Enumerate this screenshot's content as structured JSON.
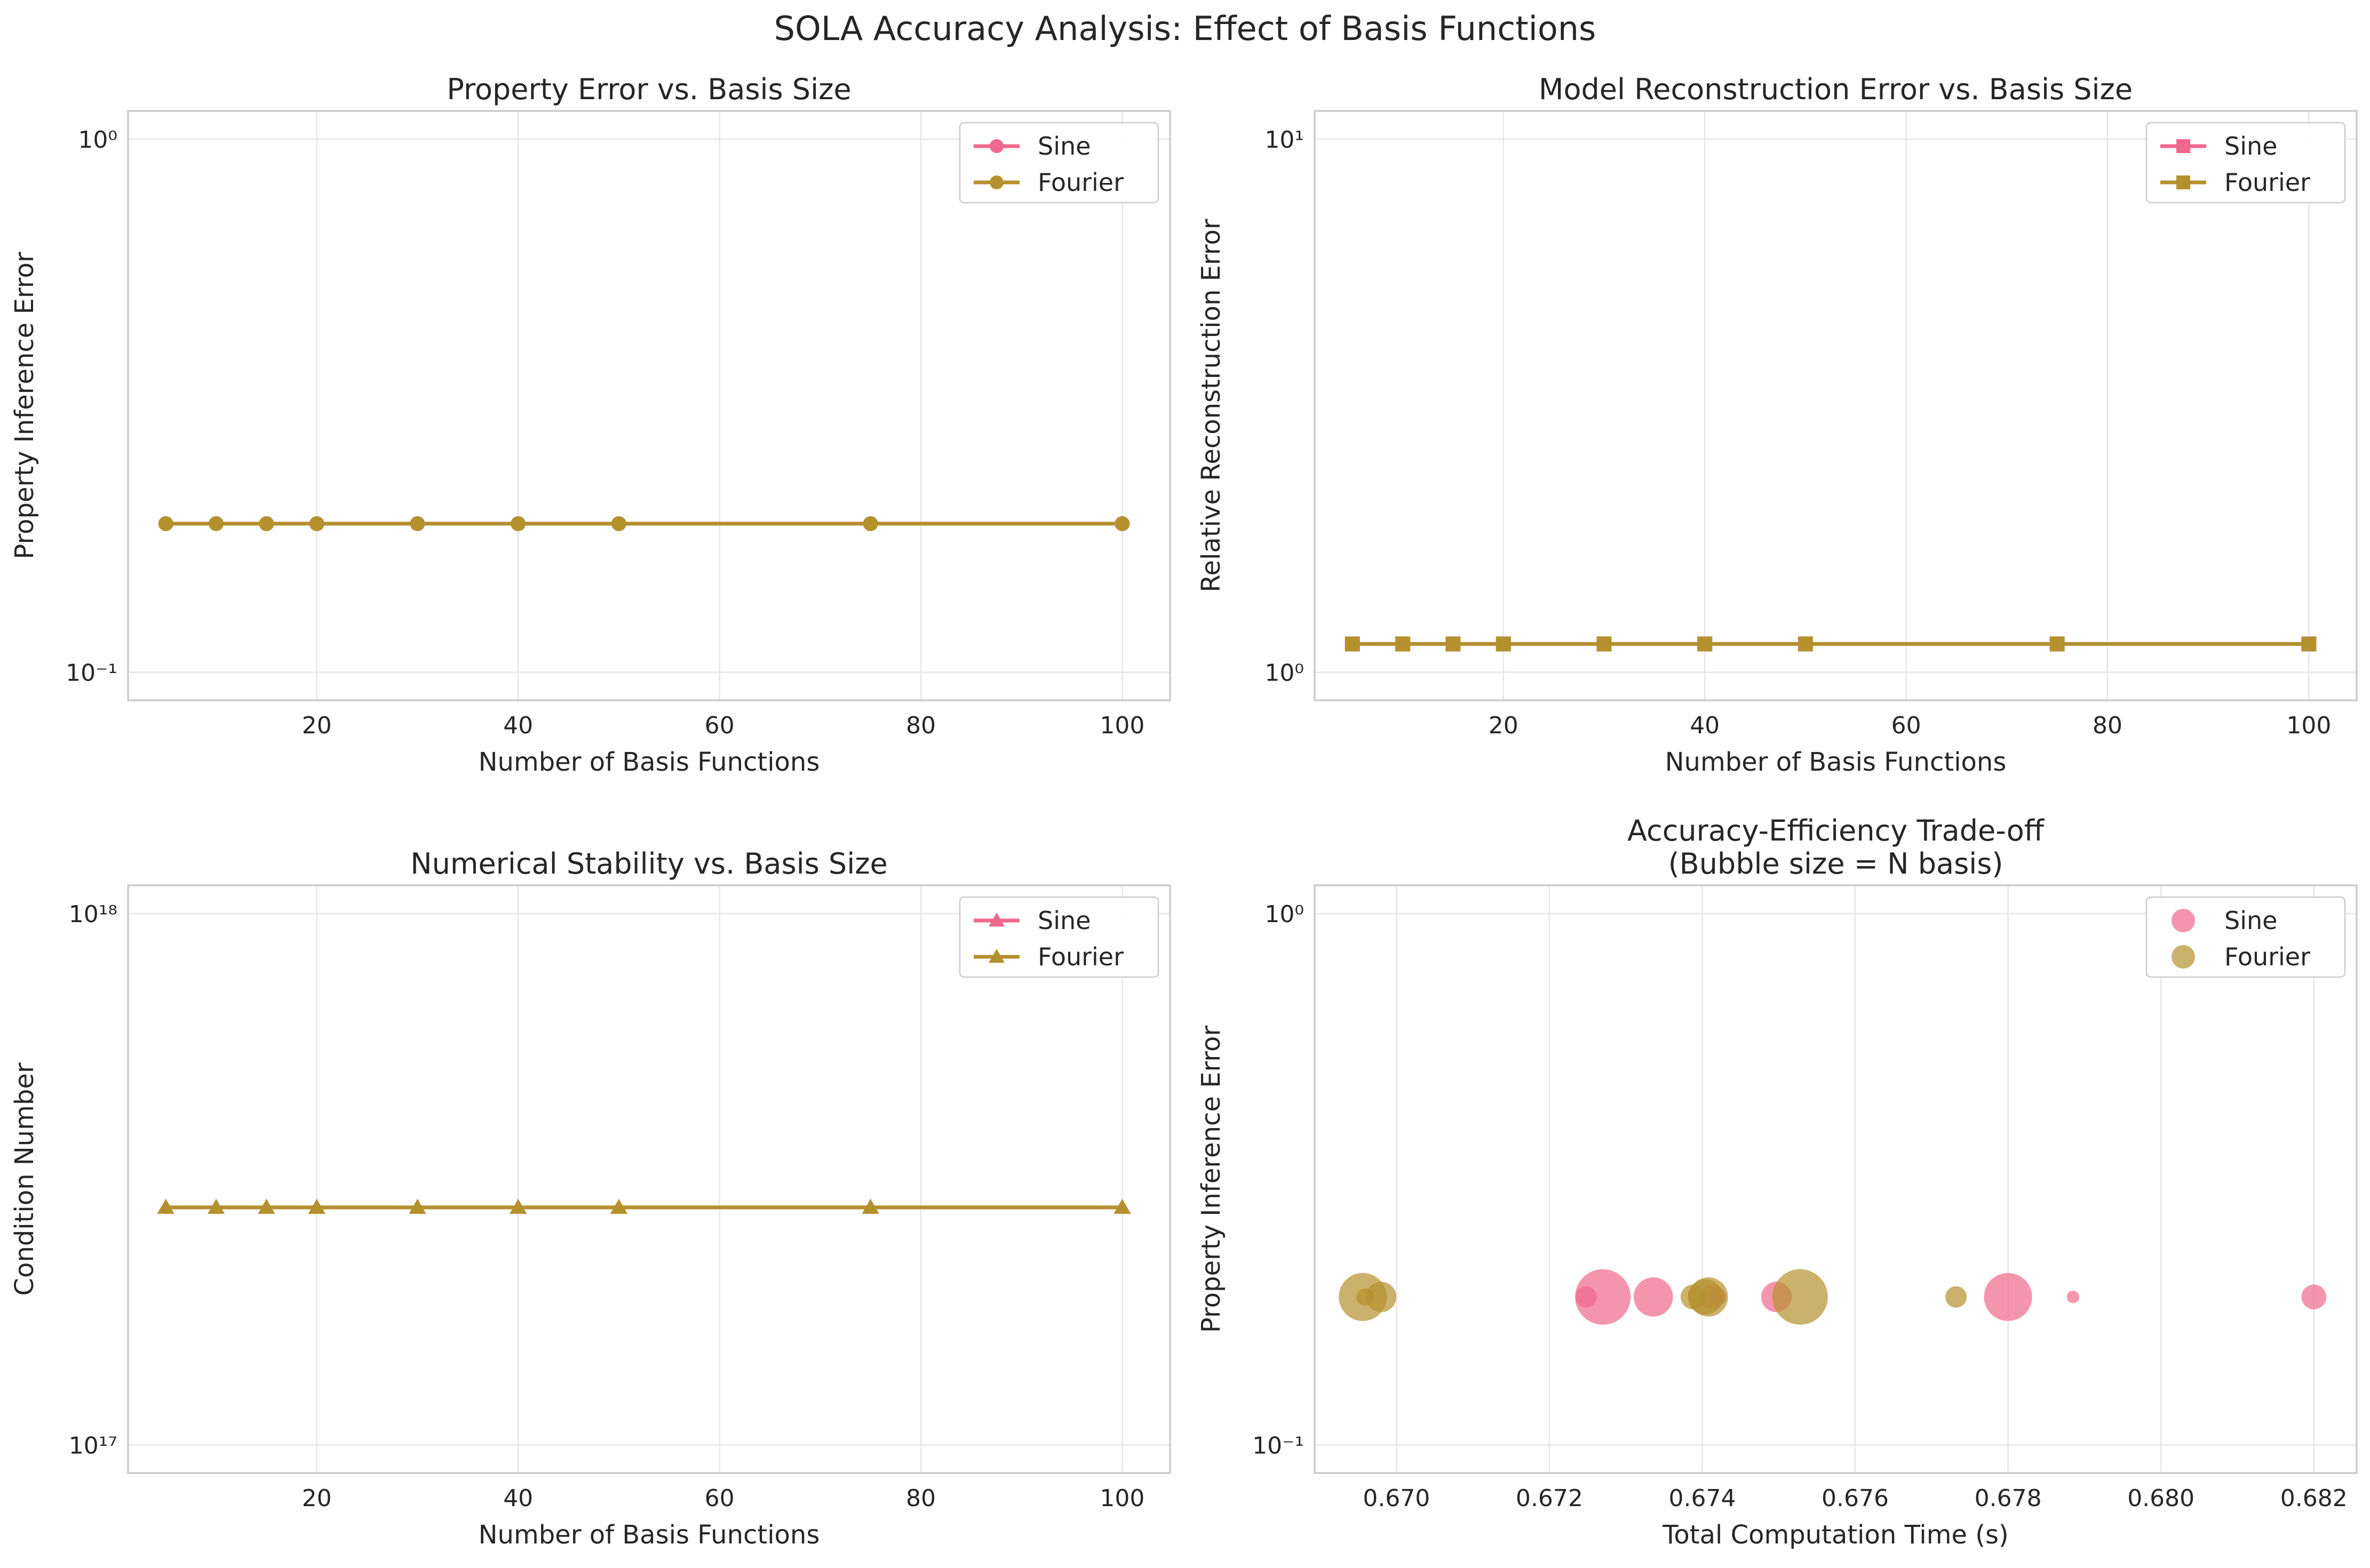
{
  "figure": {
    "title": "SOLA Accuracy Analysis: Effect of Basis Functions",
    "colors": {
      "sine": "#f0688c",
      "fourier": "#b5912e",
      "grid": "#e6e6e6",
      "frame": "#cccccc",
      "text": "#262626"
    }
  },
  "chart_data": [
    {
      "id": "property-error",
      "type": "line",
      "title": "Property Error vs. Basis Size",
      "xlabel": "Number of Basis Functions",
      "ylabel": "Property Inference Error",
      "yscale": "log",
      "xlim": [
        1.25,
        104.75
      ],
      "ylim": [
        0.0886,
        1.13
      ],
      "xticks": [
        20,
        40,
        60,
        80,
        100
      ],
      "xtick_labels": [
        "20",
        "40",
        "60",
        "80",
        "100"
      ],
      "yticks": [
        0.1,
        1
      ],
      "ytick_labels": [
        "10⁻¹",
        "10⁰"
      ],
      "grid": true,
      "legend": {
        "placement": "top-right",
        "entries": [
          "Sine",
          "Fourier"
        ]
      },
      "marker": "circle",
      "x": [
        5,
        10,
        15,
        20,
        30,
        40,
        50,
        75,
        100
      ],
      "series": [
        {
          "name": "Sine",
          "color": "#f0688c",
          "values": [
            0.19,
            0.19,
            0.19,
            0.19,
            0.19,
            0.19,
            0.19,
            0.19,
            0.19
          ]
        },
        {
          "name": "Fourier",
          "color": "#b5912e",
          "values": [
            0.19,
            0.19,
            0.19,
            0.19,
            0.19,
            0.19,
            0.19,
            0.19,
            0.19
          ]
        }
      ]
    },
    {
      "id": "reconstruction-error",
      "type": "line",
      "title": "Model Reconstruction Error vs. Basis Size",
      "xlabel": "Number of Basis Functions",
      "ylabel": "Relative Reconstruction Error",
      "yscale": "log",
      "xlim": [
        1.25,
        104.75
      ],
      "ylim": [
        0.886,
        11.3
      ],
      "xticks": [
        20,
        40,
        60,
        80,
        100
      ],
      "xtick_labels": [
        "20",
        "40",
        "60",
        "80",
        "100"
      ],
      "yticks": [
        1,
        10
      ],
      "ytick_labels": [
        "10⁰",
        "10¹"
      ],
      "grid": true,
      "legend": {
        "placement": "top-right",
        "entries": [
          "Sine",
          "Fourier"
        ]
      },
      "marker": "square",
      "x": [
        5,
        10,
        15,
        20,
        30,
        40,
        50,
        75,
        100
      ],
      "series": [
        {
          "name": "Sine",
          "color": "#f0688c",
          "values": [
            1.13,
            1.13,
            1.13,
            1.13,
            1.13,
            1.13,
            1.13,
            1.13,
            1.13
          ]
        },
        {
          "name": "Fourier",
          "color": "#b5912e",
          "values": [
            1.13,
            1.13,
            1.13,
            1.13,
            1.13,
            1.13,
            1.13,
            1.13,
            1.13
          ]
        }
      ]
    },
    {
      "id": "condition-number",
      "type": "line",
      "title": "Numerical Stability vs. Basis Size",
      "xlabel": "Number of Basis Functions",
      "ylabel": "Condition Number",
      "yscale": "log",
      "xlim": [
        1.25,
        104.75
      ],
      "ylim": [
        8.86e+16,
        1.13e+18
      ],
      "xticks": [
        20,
        40,
        60,
        80,
        100
      ],
      "xtick_labels": [
        "20",
        "40",
        "60",
        "80",
        "100"
      ],
      "yticks": [
        1e+17,
        1e+18
      ],
      "ytick_labels": [
        "10¹⁷",
        "10¹⁸"
      ],
      "grid": true,
      "legend": {
        "placement": "top-right",
        "entries": [
          "Sine",
          "Fourier"
        ]
      },
      "marker": "triangle",
      "x": [
        5,
        10,
        15,
        20,
        30,
        40,
        50,
        75,
        100
      ],
      "series": [
        {
          "name": "Sine",
          "color": "#f0688c",
          "values": [
            2.8e+17,
            2.8e+17,
            2.8e+17,
            2.8e+17,
            2.8e+17,
            2.8e+17,
            2.8e+17,
            2.8e+17,
            2.8e+17
          ]
        },
        {
          "name": "Fourier",
          "color": "#b5912e",
          "values": [
            2.8e+17,
            2.8e+17,
            2.8e+17,
            2.8e+17,
            2.8e+17,
            2.8e+17,
            2.8e+17,
            2.8e+17,
            2.8e+17
          ]
        }
      ]
    },
    {
      "id": "tradeoff",
      "type": "scatter",
      "title": "Accuracy-Efficiency Trade-off",
      "subtitle": "(Bubble size = N basis)",
      "xlabel": "Total Computation Time (s)",
      "ylabel": "Property Inference Error",
      "yscale": "log",
      "xlim": [
        0.66893,
        0.68256
      ],
      "ylim": [
        0.0886,
        1.13
      ],
      "xticks": [
        0.67,
        0.672,
        0.674,
        0.676,
        0.678,
        0.68,
        0.682
      ],
      "xtick_labels": [
        "0.670",
        "0.672",
        "0.674",
        "0.676",
        "0.678",
        "0.680",
        "0.682"
      ],
      "yticks": [
        0.1,
        1
      ],
      "ytick_labels": [
        "10⁻¹",
        "10⁰"
      ],
      "grid": true,
      "legend": {
        "placement": "top-right",
        "entries": [
          "Sine",
          "Fourier"
        ]
      },
      "series": [
        {
          "name": "Sine",
          "color": "#f0688c",
          "points": [
            {
              "x": 0.67248,
              "y": 0.19,
              "n": 15
            },
            {
              "x": 0.6727,
              "y": 0.19,
              "n": 100
            },
            {
              "x": 0.67336,
              "y": 0.19,
              "n": 50
            },
            {
              "x": 0.67413,
              "y": 0.19,
              "n": 20
            },
            {
              "x": 0.6742,
              "y": 0.19,
              "n": 10
            },
            {
              "x": 0.67497,
              "y": 0.19,
              "n": 30
            },
            {
              "x": 0.678,
              "y": 0.19,
              "n": 75
            },
            {
              "x": 0.67885,
              "y": 0.19,
              "n": 5
            },
            {
              "x": 0.682,
              "y": 0.19,
              "n": 20
            }
          ]
        },
        {
          "name": "Fourier",
          "color": "#b5912e",
          "points": [
            {
              "x": 0.66956,
              "y": 0.19,
              "n": 75
            },
            {
              "x": 0.66959,
              "y": 0.19,
              "n": 10
            },
            {
              "x": 0.6698,
              "y": 0.19,
              "n": 30
            },
            {
              "x": 0.67388,
              "y": 0.19,
              "n": 20
            },
            {
              "x": 0.67404,
              "y": 0.19,
              "n": 40
            },
            {
              "x": 0.67408,
              "y": 0.19,
              "n": 50
            },
            {
              "x": 0.67528,
              "y": 0.19,
              "n": 100
            },
            {
              "x": 0.67732,
              "y": 0.19,
              "n": 15
            }
          ]
        }
      ]
    }
  ]
}
